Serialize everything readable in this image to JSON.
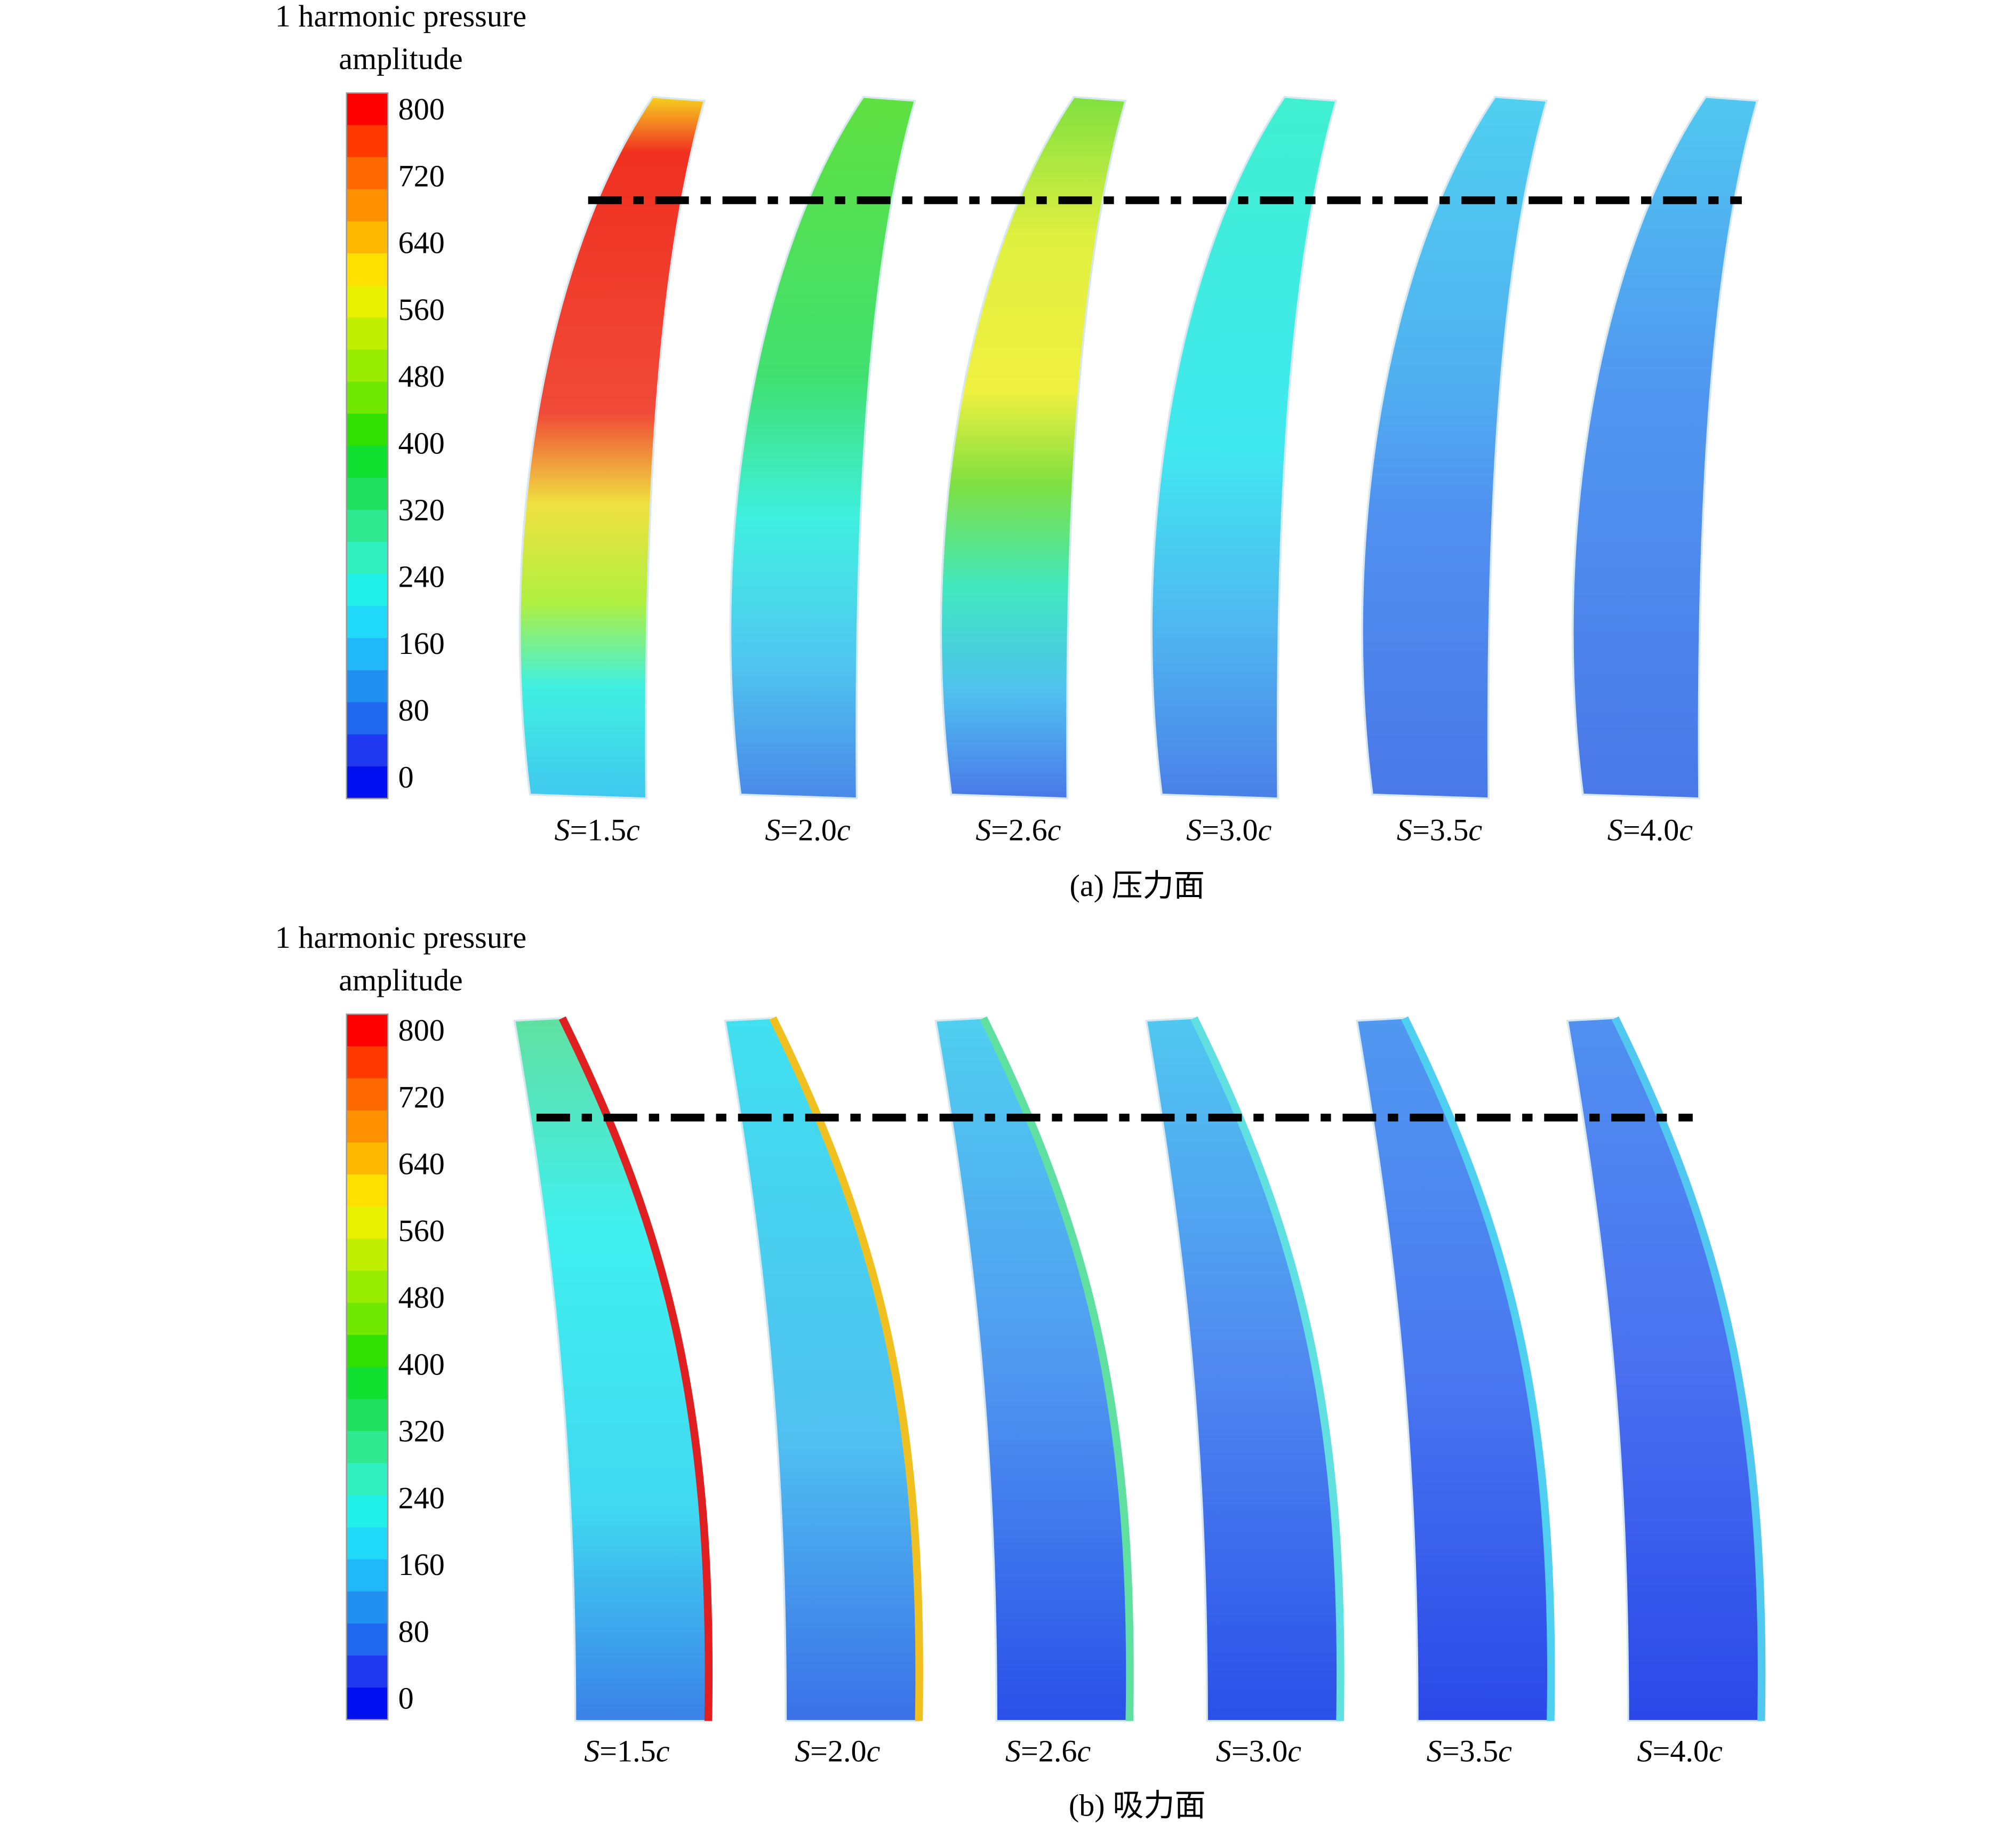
{
  "colormap": [
    "#ff0000",
    "#ff3a00",
    "#ff6a00",
    "#ff9000",
    "#ffb800",
    "#ffe000",
    "#e8f000",
    "#c0f000",
    "#98ec00",
    "#70e800",
    "#30e000",
    "#10e030",
    "#20e060",
    "#30e890",
    "#30f0c0",
    "#20f0e8",
    "#20d8f8",
    "#20b8f8",
    "#2090f0",
    "#2068f0",
    "#2038f0",
    "#0010f0"
  ],
  "panels": [
    {
      "colorbar_title": [
        "1 harmonic pressure",
        "amplitude"
      ],
      "colorbar_ticks": [
        800,
        720,
        640,
        560,
        480,
        400,
        320,
        240,
        160,
        80,
        0
      ],
      "blade_labels": [
        {
          "var": "S",
          "eq": "=1.5",
          "unit": "c"
        },
        {
          "var": "S",
          "eq": "=2.0",
          "unit": "c"
        },
        {
          "var": "S",
          "eq": "=2.6",
          "unit": "c"
        },
        {
          "var": "S",
          "eq": "=3.0",
          "unit": "c"
        },
        {
          "var": "S",
          "eq": "=3.5",
          "unit": "c"
        },
        {
          "var": "S",
          "eq": "=4.0",
          "unit": "c"
        }
      ],
      "caption": "(a) 压力面"
    },
    {
      "colorbar_title": [
        "1 harmonic pressure",
        "amplitude"
      ],
      "colorbar_ticks": [
        800,
        720,
        640,
        560,
        480,
        400,
        320,
        240,
        160,
        80,
        0
      ],
      "blade_labels": [
        {
          "var": "S",
          "eq": "=1.5",
          "unit": "c"
        },
        {
          "var": "S",
          "eq": "=2.0",
          "unit": "c"
        },
        {
          "var": "S",
          "eq": "=2.6",
          "unit": "c"
        },
        {
          "var": "S",
          "eq": "=3.0",
          "unit": "c"
        },
        {
          "var": "S",
          "eq": "=3.5",
          "unit": "c"
        },
        {
          "var": "S",
          "eq": "=4.0",
          "unit": "c"
        }
      ],
      "caption": "(b) 吸力面"
    }
  ]
}
